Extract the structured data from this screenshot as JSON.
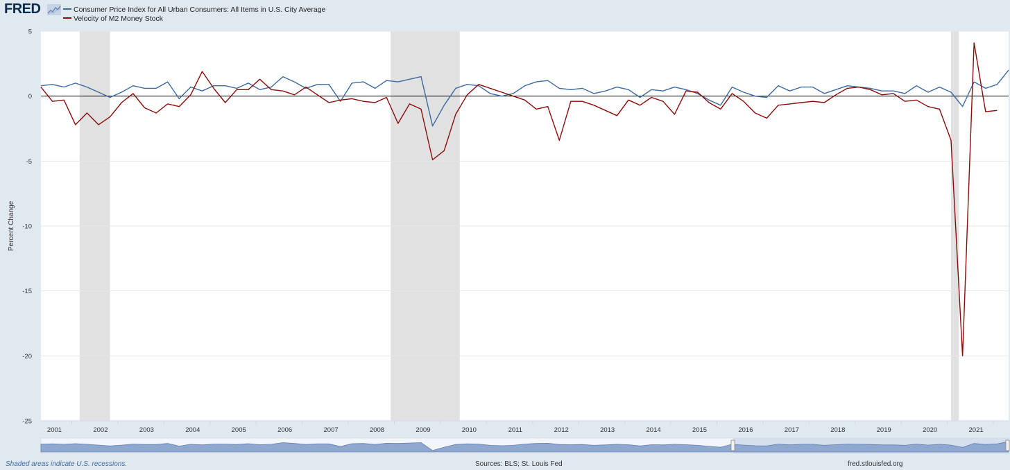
{
  "brand": {
    "logo_text": "FRED"
  },
  "footer": {
    "note": "Shaded areas indicate U.S. recessions.",
    "sources": "Sources: BLS; St. Louis Fed",
    "site": "fred.stlouisfed.org"
  },
  "colors": {
    "cpi": "#3b6aa0",
    "velocity": "#8b0a0a",
    "recession": "#e1e1e1",
    "navigator": "#8fa8cf"
  },
  "chart_data": {
    "type": "line",
    "title": "",
    "xlabel": "",
    "ylabel": "Percent Change",
    "ylim": [
      -25,
      5
    ],
    "yticks": [
      5,
      0,
      -5,
      -10,
      -15,
      -20,
      -25
    ],
    "xlim": [
      2000.33,
      2021.33
    ],
    "xticks": [
      "2001",
      "2002",
      "2003",
      "2004",
      "2005",
      "2006",
      "2007",
      "2008",
      "2009",
      "2010",
      "2011",
      "2012",
      "2013",
      "2014",
      "2015",
      "2016",
      "2017",
      "2018",
      "2019",
      "2020",
      "2021"
    ],
    "legend_position": "top-left",
    "grid": true,
    "recessions": [
      [
        2001.17,
        2001.83
      ],
      [
        2007.92,
        2009.42
      ],
      [
        2020.08,
        2020.25
      ]
    ],
    "series": [
      {
        "name": "Consumer Price Index for All Urban Consumers: All Items in U.S. City Average",
        "color": "#3b6aa0",
        "x": [
          2000.33,
          2000.58,
          2000.83,
          2001.08,
          2001.33,
          2001.58,
          2001.83,
          2002.08,
          2002.33,
          2002.58,
          2002.83,
          2003.08,
          2003.33,
          2003.58,
          2003.83,
          2004.08,
          2004.33,
          2004.58,
          2004.83,
          2005.08,
          2005.33,
          2005.58,
          2005.83,
          2006.08,
          2006.33,
          2006.58,
          2006.83,
          2007.08,
          2007.33,
          2007.58,
          2007.83,
          2008.08,
          2008.33,
          2008.58,
          2008.83,
          2009.08,
          2009.33,
          2009.58,
          2009.83,
          2010.08,
          2010.33,
          2010.58,
          2010.83,
          2011.08,
          2011.33,
          2011.58,
          2011.83,
          2012.08,
          2012.33,
          2012.58,
          2012.83,
          2013.08,
          2013.33,
          2013.58,
          2013.83,
          2014.08,
          2014.33,
          2014.58,
          2014.83,
          2015.08,
          2015.33,
          2015.58,
          2015.83,
          2016.08,
          2016.33,
          2016.58,
          2016.83,
          2017.08,
          2017.33,
          2017.58,
          2017.83,
          2018.08,
          2018.33,
          2018.58,
          2018.83,
          2019.08,
          2019.33,
          2019.58,
          2019.83,
          2020.08,
          2020.33,
          2020.58,
          2020.83,
          2021.08,
          2021.33
        ],
        "values": [
          0.8,
          0.9,
          0.7,
          1.0,
          0.7,
          0.3,
          -0.1,
          0.3,
          0.8,
          0.6,
          0.6,
          1.1,
          -0.2,
          0.7,
          0.4,
          0.8,
          0.8,
          0.6,
          1.0,
          0.5,
          0.7,
          1.5,
          1.1,
          0.6,
          0.9,
          0.9,
          -0.4,
          1.0,
          1.1,
          0.6,
          1.2,
          1.1,
          1.3,
          1.5,
          -2.3,
          -0.7,
          0.6,
          0.9,
          0.8,
          0.2,
          0.0,
          0.2,
          0.8,
          1.1,
          1.2,
          0.6,
          0.5,
          0.6,
          0.2,
          0.4,
          0.7,
          0.5,
          -0.1,
          0.5,
          0.4,
          0.7,
          0.5,
          0.2,
          -0.3,
          -0.7,
          0.7,
          0.3,
          0.0,
          -0.1,
          0.8,
          0.4,
          0.7,
          0.7,
          0.2,
          0.5,
          0.8,
          0.7,
          0.6,
          0.4,
          0.4,
          0.2,
          0.8,
          0.3,
          0.7,
          0.3,
          -0.8,
          1.1,
          0.6,
          0.9,
          2.0
        ]
      },
      {
        "name": "Velocity of M2 Money Stock",
        "color": "#8b0a0a",
        "x": [
          2000.33,
          2000.58,
          2000.83,
          2001.08,
          2001.33,
          2001.58,
          2001.83,
          2002.08,
          2002.33,
          2002.58,
          2002.83,
          2003.08,
          2003.33,
          2003.58,
          2003.83,
          2004.08,
          2004.33,
          2004.58,
          2004.83,
          2005.08,
          2005.33,
          2005.58,
          2005.83,
          2006.08,
          2006.33,
          2006.58,
          2006.83,
          2007.08,
          2007.33,
          2007.58,
          2007.83,
          2008.08,
          2008.33,
          2008.58,
          2008.83,
          2009.08,
          2009.33,
          2009.58,
          2009.83,
          2010.08,
          2010.33,
          2010.58,
          2010.83,
          2011.08,
          2011.33,
          2011.58,
          2011.83,
          2012.08,
          2012.33,
          2012.58,
          2012.83,
          2013.08,
          2013.33,
          2013.58,
          2013.83,
          2014.08,
          2014.33,
          2014.58,
          2014.83,
          2015.08,
          2015.33,
          2015.58,
          2015.83,
          2016.08,
          2016.33,
          2016.58,
          2016.83,
          2017.08,
          2017.33,
          2017.58,
          2017.83,
          2018.08,
          2018.33,
          2018.58,
          2018.83,
          2019.08,
          2019.33,
          2019.58,
          2019.83,
          2020.08,
          2020.33,
          2020.58,
          2020.83,
          2021.08
        ],
        "values": [
          0.7,
          -0.4,
          -0.3,
          -2.2,
          -1.3,
          -2.2,
          -1.6,
          -0.5,
          0.2,
          -0.9,
          -1.3,
          -0.6,
          -0.8,
          0.1,
          1.9,
          0.6,
          -0.5,
          0.5,
          0.5,
          1.3,
          0.5,
          0.4,
          0.1,
          0.7,
          0.1,
          -0.5,
          -0.3,
          -0.2,
          -0.4,
          -0.5,
          -0.1,
          -2.1,
          -0.6,
          -1.0,
          -4.9,
          -4.2,
          -1.4,
          0.1,
          0.9,
          0.6,
          0.3,
          0.0,
          -0.3,
          -1.0,
          -0.8,
          -3.4,
          -0.4,
          -0.4,
          -0.7,
          -1.1,
          -1.5,
          -0.3,
          -0.7,
          -0.1,
          -0.4,
          -1.4,
          0.4,
          0.3,
          -0.5,
          -1.0,
          0.2,
          -0.4,
          -1.3,
          -1.7,
          -0.7,
          -0.6,
          -0.5,
          -0.4,
          -0.5,
          0.1,
          0.6,
          0.7,
          0.5,
          0.1,
          0.2,
          -0.4,
          -0.3,
          -0.8,
          -1.0,
          -3.4,
          -20.0,
          4.1,
          -1.2,
          -1.1
        ]
      }
    ]
  }
}
